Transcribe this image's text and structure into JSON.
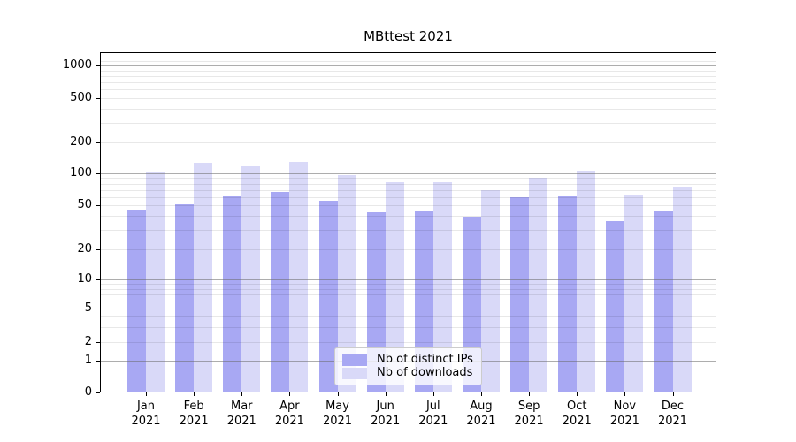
{
  "chart_data": {
    "type": "bar",
    "title": "MBttest 2021",
    "year": "2021",
    "categories": [
      "Jan 2021",
      "Feb 2021",
      "Mar 2021",
      "Apr 2021",
      "May 2021",
      "Jun 2021",
      "Jul 2021",
      "Aug 2021",
      "Sep 2021",
      "Oct 2021",
      "Nov 2021",
      "Dec 2021"
    ],
    "months": [
      "Jan",
      "Feb",
      "Mar",
      "Apr",
      "May",
      "Jun",
      "Jul",
      "Aug",
      "Sep",
      "Oct",
      "Nov",
      "Dec"
    ],
    "series": [
      {
        "name": "Nb of distinct IPs",
        "color": "#a8a8f3",
        "values": [
          45,
          51,
          61,
          67,
          55,
          43,
          44,
          39,
          59,
          61,
          36,
          44
        ]
      },
      {
        "name": "Nb of downloads",
        "color": "#d9d9f8",
        "values": [
          101,
          126,
          117,
          129,
          96,
          82,
          82,
          70,
          91,
          104,
          62,
          74
        ]
      }
    ],
    "yticks": [
      0,
      1,
      2,
      5,
      10,
      20,
      50,
      100,
      200,
      500,
      1000
    ],
    "yscale": "symlog",
    "ylim": [
      0,
      1330
    ],
    "grid": true,
    "legend_position": "lower center",
    "legend_labels": [
      "Nb of distinct IPs",
      "Nb of downloads"
    ],
    "scale_anchors": [
      {
        "value": 0,
        "frac": 0.0
      },
      {
        "value": 1,
        "frac": 0.0935
      },
      {
        "value": 2,
        "frac": 0.1481
      },
      {
        "value": 5,
        "frac": 0.2468
      },
      {
        "value": 10,
        "frac": 0.3325
      },
      {
        "value": 20,
        "frac": 0.4208
      },
      {
        "value": 50,
        "frac": 0.5506
      },
      {
        "value": 100,
        "frac": 0.6442
      },
      {
        "value": 200,
        "frac": 0.7351
      },
      {
        "value": 500,
        "frac": 0.8649
      },
      {
        "value": 1000,
        "frac": 0.961
      }
    ],
    "major_gridline_values": [
      1,
      10,
      100,
      1000
    ],
    "minor_gridline_values": [
      2,
      3,
      4,
      5,
      6,
      7,
      8,
      9,
      20,
      30,
      40,
      50,
      60,
      70,
      80,
      90,
      200,
      300,
      400,
      500,
      600,
      700,
      800,
      900,
      1100,
      1200
    ]
  },
  "colors": {
    "bar_distinct_ips": "#a8a8f3",
    "bar_downloads": "#d9d9f8",
    "spine": "#000000",
    "legend_border": "#cccccc",
    "grid_major": "#696969",
    "grid_minor": "#e8e8e8"
  }
}
